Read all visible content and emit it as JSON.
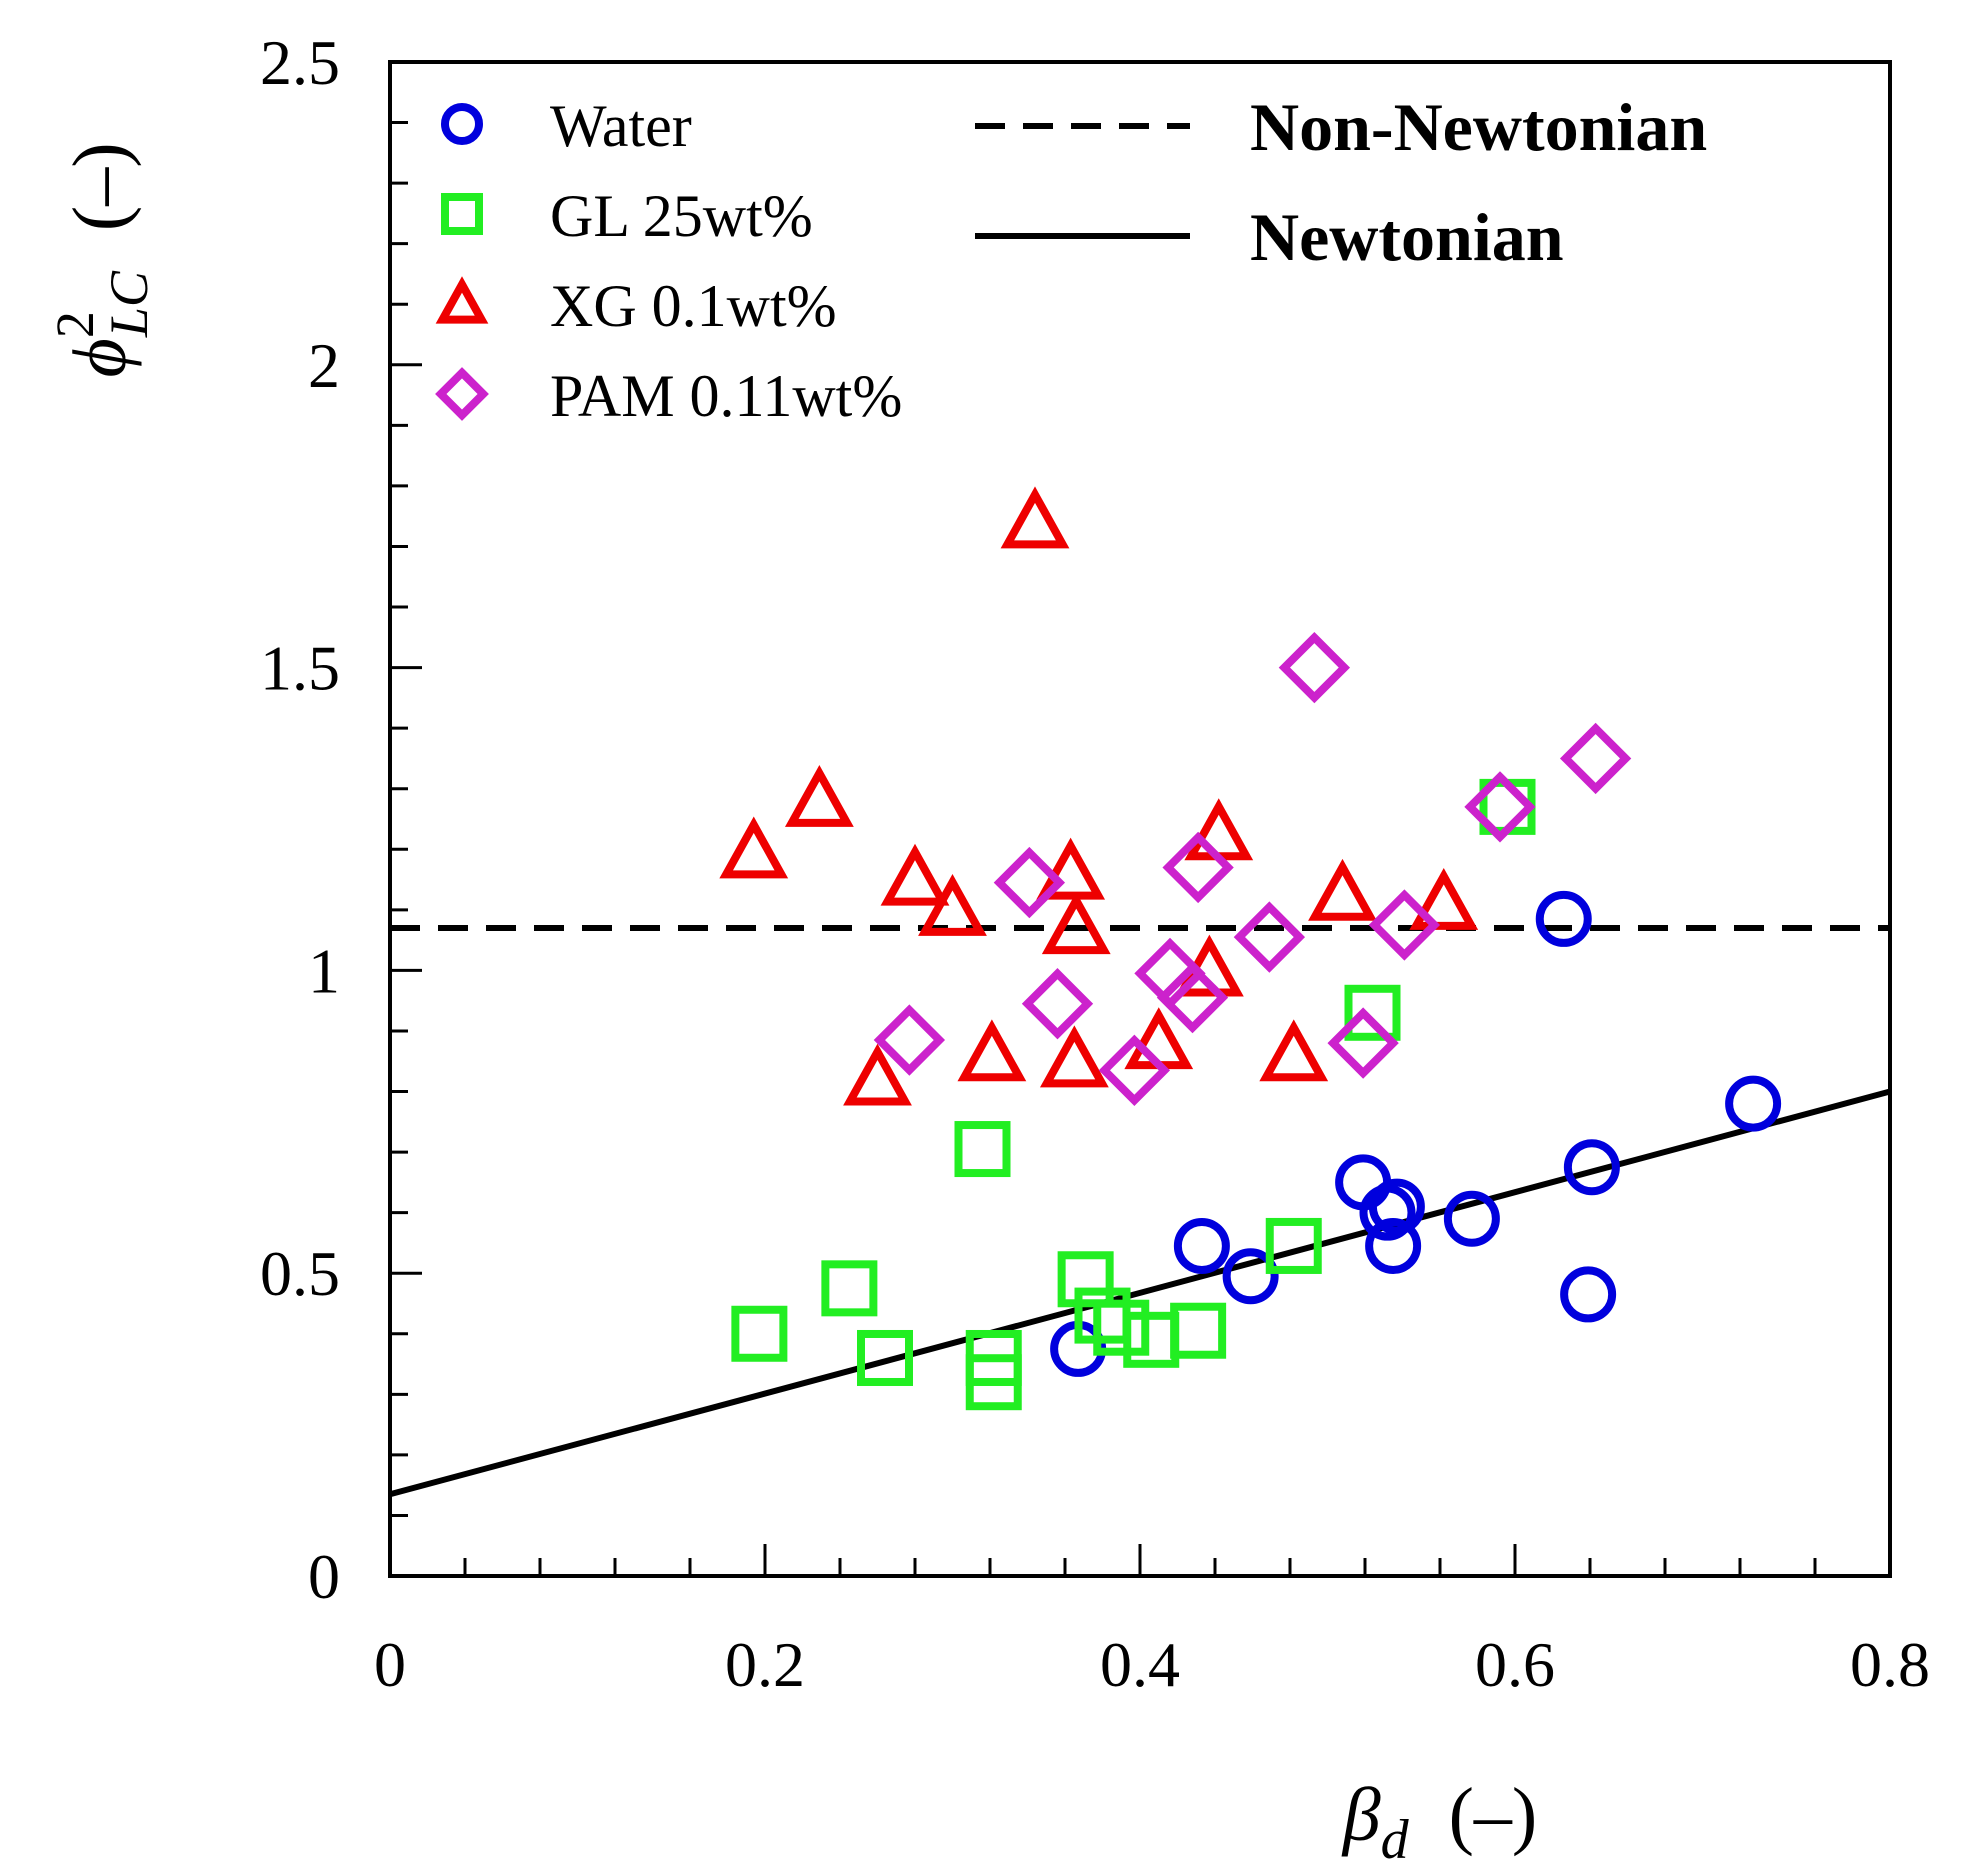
{
  "chart_data": {
    "type": "scatter",
    "xlabel": {
      "symbol": "β",
      "subscript": "d",
      "unit": "(–)"
    },
    "ylabel": {
      "symbol": "ϕ",
      "superscript": "2",
      "subscript": "LC",
      "unit": "(–)"
    },
    "xlim": [
      0,
      0.8
    ],
    "ylim": [
      0,
      2.5
    ],
    "xticks": [
      0,
      0.2,
      0.4,
      0.6,
      0.8
    ],
    "xtick_labels": [
      "0",
      "0.2",
      "0.4",
      "0.6",
      "0.8"
    ],
    "yticks": [
      0,
      0.5,
      1,
      1.5,
      2,
      2.5
    ],
    "ytick_labels": [
      "0",
      "0.5",
      "1",
      "1.5",
      "2",
      "2.5"
    ],
    "grid": false,
    "legend_position": "top-left",
    "series": [
      {
        "name": "Water",
        "marker": "circle",
        "color": "#0000dd",
        "points": [
          [
            0.367,
            0.375
          ],
          [
            0.433,
            0.545
          ],
          [
            0.459,
            0.495
          ],
          [
            0.519,
            0.65
          ],
          [
            0.532,
            0.6
          ],
          [
            0.535,
            0.545
          ],
          [
            0.537,
            0.61
          ],
          [
            0.577,
            0.59
          ],
          [
            0.626,
            1.085
          ],
          [
            0.639,
            0.465
          ],
          [
            0.641,
            0.675
          ],
          [
            0.727,
            0.78
          ]
        ]
      },
      {
        "name": "GL 25wt%",
        "marker": "square",
        "color": "#22ee22",
        "points": [
          [
            0.197,
            0.4
          ],
          [
            0.245,
            0.475
          ],
          [
            0.264,
            0.36
          ],
          [
            0.316,
            0.705
          ],
          [
            0.322,
            0.36
          ],
          [
            0.322,
            0.32
          ],
          [
            0.371,
            0.49
          ],
          [
            0.38,
            0.43
          ],
          [
            0.39,
            0.41
          ],
          [
            0.406,
            0.39
          ],
          [
            0.431,
            0.405
          ],
          [
            0.482,
            0.545
          ],
          [
            0.524,
            0.93
          ],
          [
            0.596,
            1.27
          ]
        ]
      },
      {
        "name": "XG 0.1wt%",
        "marker": "triangle",
        "color": "#ee0000",
        "points": [
          [
            0.194,
            1.195
          ],
          [
            0.229,
            1.28
          ],
          [
            0.26,
            0.82
          ],
          [
            0.28,
            1.15
          ],
          [
            0.3,
            1.1
          ],
          [
            0.321,
            0.86
          ],
          [
            0.344,
            1.74
          ],
          [
            0.363,
            1.16
          ],
          [
            0.365,
            0.85
          ],
          [
            0.366,
            1.07
          ],
          [
            0.41,
            0.88
          ],
          [
            0.437,
            1.0
          ],
          [
            0.442,
            1.225
          ],
          [
            0.482,
            0.86
          ],
          [
            0.508,
            1.125
          ],
          [
            0.562,
            1.11
          ]
        ]
      },
      {
        "name": "PAM 0.11wt%",
        "marker": "diamond",
        "color": "#cc22cc",
        "points": [
          [
            0.277,
            0.885
          ],
          [
            0.341,
            1.145
          ],
          [
            0.356,
            0.945
          ],
          [
            0.397,
            0.835
          ],
          [
            0.416,
            0.995
          ],
          [
            0.428,
            0.955
          ],
          [
            0.431,
            1.17
          ],
          [
            0.469,
            1.055
          ],
          [
            0.493,
            1.5
          ],
          [
            0.519,
            0.88
          ],
          [
            0.541,
            1.075
          ],
          [
            0.592,
            1.27
          ],
          [
            0.643,
            1.35
          ]
        ]
      }
    ],
    "lines": [
      {
        "name": "Non-Newtonian",
        "style": "dashed",
        "color": "#000000",
        "points": [
          [
            0,
            1.07
          ],
          [
            0.8,
            1.07
          ]
        ]
      },
      {
        "name": "Newtonian",
        "style": "solid",
        "color": "#000000",
        "points": [
          [
            0,
            0.135
          ],
          [
            0.8,
            0.8
          ]
        ]
      }
    ]
  }
}
